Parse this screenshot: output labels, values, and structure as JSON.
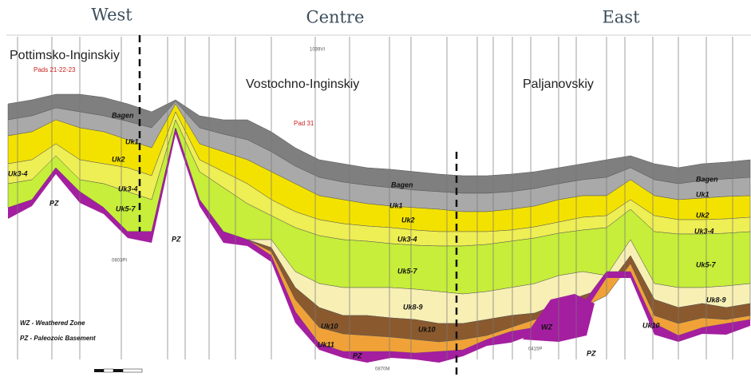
{
  "headers": {
    "west": "West",
    "centre": "Centre",
    "east": "East"
  },
  "regions": [
    {
      "name": "Pottimsko-Inginskiy",
      "pad": "Pads 21-22-23"
    },
    {
      "name": "Vostochno-Inginskiy",
      "pad": "Pad 31"
    },
    {
      "name": "Paljanovskiy"
    }
  ],
  "layer_labels": [
    "Bagen",
    "Uk1",
    "Uk2",
    "Uk3-4",
    "Uk5-7",
    "Uk3-4",
    "PZ",
    "PZ",
    "Bagen",
    "Uk1",
    "Uk2",
    "Uk3-4",
    "Uk5-7",
    "Uk8-9",
    "Uk10",
    "Uk10",
    "Uk11",
    "PZ",
    "WZ",
    "PZ",
    "Bagen",
    "Uk1",
    "Uk2",
    "Uk3-4",
    "Uk5-7",
    "Uk8-9",
    "Uk10"
  ],
  "well_names": [
    "1039VI",
    "0803PI",
    "0870M",
    "0415P"
  ],
  "legend": [
    "WZ - Weathered Zone",
    "PZ - Paleozoic Basement"
  ]
}
